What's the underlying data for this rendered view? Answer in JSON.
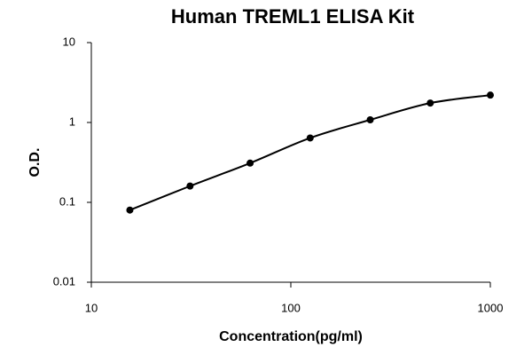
{
  "chart_data": {
    "type": "line",
    "title": "Human TREML1 ELISA Kit",
    "x_label": "Concentration(pg/ml)",
    "y_label": "O.D.",
    "x": [
      15.6,
      31.25,
      62.5,
      125,
      250,
      500,
      1000
    ],
    "values": [
      0.08,
      0.16,
      0.31,
      0.64,
      1.08,
      1.75,
      2.2
    ],
    "color": "#000000",
    "xlim": [
      10,
      1000
    ],
    "xticks": [
      10,
      100,
      1000
    ],
    "ylim": [
      0.01,
      10
    ],
    "yticks": [
      0.01,
      0.1,
      1,
      10
    ],
    "xscale": "log",
    "yscale": "log",
    "grid": false
  }
}
